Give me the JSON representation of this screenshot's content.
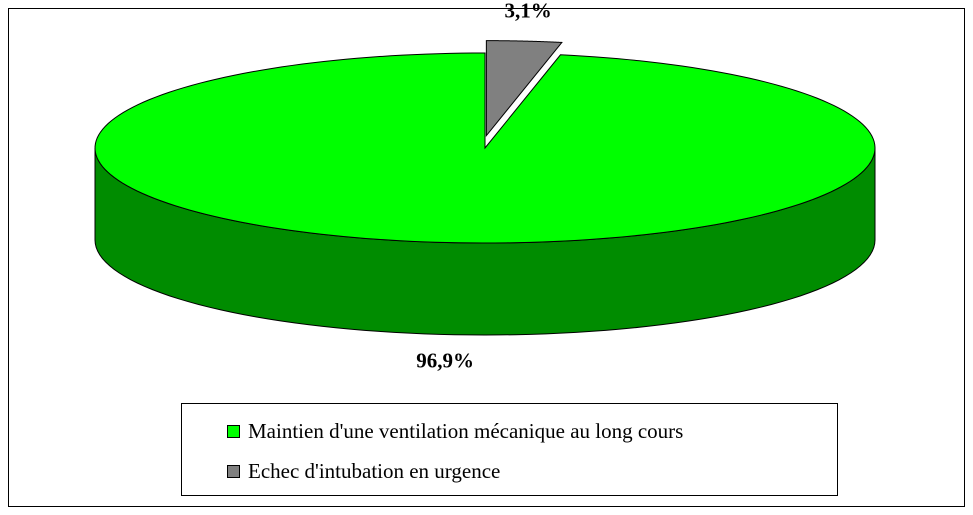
{
  "chart_data": {
    "type": "pie",
    "three_d": true,
    "exploded": [
      "Echec d'intubation en urgence"
    ],
    "categories": [
      "Maintien d'une ventilation mécanique au long cours",
      "Echec d'intubation en urgence"
    ],
    "values": [
      96.9,
      3.1
    ],
    "value_labels": [
      "96,9%",
      "3,1%"
    ],
    "colors": [
      "#00ff00",
      "#808080"
    ],
    "legend": "bottom"
  }
}
